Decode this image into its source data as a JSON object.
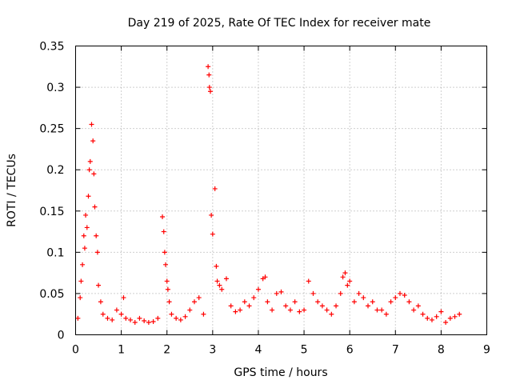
{
  "chart_data": {
    "type": "scatter",
    "title": "Day 219 of 2025, Rate Of TEC Index for receiver mate",
    "xlabel": "GPS time / hours",
    "ylabel": "ROTI / TECUs",
    "xlim": [
      0,
      9
    ],
    "ylim": [
      0,
      0.35
    ],
    "xticks": [
      0,
      1,
      2,
      3,
      4,
      5,
      6,
      7,
      8,
      9
    ],
    "xtick_labels": [
      "0",
      "1",
      "2",
      "3",
      "4",
      "5",
      "6",
      "7",
      "8",
      "9"
    ],
    "yticks": [
      0,
      0.05,
      0.1,
      0.15,
      0.2,
      0.25,
      0.3,
      0.35
    ],
    "ytick_labels": [
      "0",
      "0.05",
      "0.1",
      "0.15",
      "0.2",
      "0.25",
      "0.3",
      "0.35"
    ],
    "grid": true,
    "marker": "plus",
    "series": [
      {
        "name": "ROTI",
        "color": "#ff0000",
        "x": [
          0.05,
          0.1,
          0.12,
          0.15,
          0.18,
          0.2,
          0.22,
          0.25,
          0.28,
          0.3,
          0.32,
          0.35,
          0.38,
          0.4,
          0.42,
          0.45,
          0.48,
          0.5,
          0.55,
          0.6,
          0.7,
          0.8,
          0.9,
          1.0,
          1.05,
          1.1,
          1.2,
          1.3,
          1.4,
          1.5,
          1.6,
          1.7,
          1.8,
          1.9,
          1.93,
          1.95,
          1.97,
          2.0,
          2.02,
          2.05,
          2.1,
          2.2,
          2.3,
          2.4,
          2.5,
          2.6,
          2.7,
          2.8,
          2.9,
          2.92,
          2.93,
          2.95,
          2.97,
          3.0,
          3.05,
          3.08,
          3.1,
          3.15,
          3.2,
          3.3,
          3.4,
          3.5,
          3.6,
          3.7,
          3.8,
          3.9,
          4.0,
          4.1,
          4.15,
          4.2,
          4.3,
          4.4,
          4.5,
          4.6,
          4.7,
          4.8,
          4.9,
          5.0,
          5.1,
          5.2,
          5.3,
          5.4,
          5.5,
          5.6,
          5.7,
          5.8,
          5.85,
          5.9,
          5.95,
          6.0,
          6.1,
          6.2,
          6.3,
          6.4,
          6.5,
          6.6,
          6.7,
          6.8,
          6.9,
          7.0,
          7.1,
          7.2,
          7.3,
          7.4,
          7.5,
          7.6,
          7.7,
          7.8,
          7.9,
          8.0,
          8.1,
          8.2,
          8.3,
          8.4
        ],
        "y": [
          0.02,
          0.045,
          0.065,
          0.085,
          0.12,
          0.105,
          0.145,
          0.13,
          0.168,
          0.2,
          0.21,
          0.255,
          0.235,
          0.195,
          0.155,
          0.12,
          0.1,
          0.06,
          0.04,
          0.025,
          0.02,
          0.018,
          0.03,
          0.025,
          0.045,
          0.02,
          0.018,
          0.015,
          0.02,
          0.017,
          0.015,
          0.016,
          0.02,
          0.143,
          0.125,
          0.1,
          0.085,
          0.065,
          0.055,
          0.04,
          0.025,
          0.02,
          0.018,
          0.022,
          0.03,
          0.04,
          0.045,
          0.025,
          0.325,
          0.315,
          0.3,
          0.295,
          0.145,
          0.122,
          0.177,
          0.083,
          0.065,
          0.06,
          0.055,
          0.068,
          0.035,
          0.028,
          0.03,
          0.04,
          0.035,
          0.045,
          0.055,
          0.068,
          0.07,
          0.04,
          0.03,
          0.05,
          0.052,
          0.035,
          0.03,
          0.04,
          0.028,
          0.03,
          0.065,
          0.05,
          0.04,
          0.035,
          0.03,
          0.025,
          0.035,
          0.05,
          0.07,
          0.075,
          0.06,
          0.065,
          0.04,
          0.05,
          0.045,
          0.035,
          0.04,
          0.03,
          0.03,
          0.025,
          0.04,
          0.045,
          0.05,
          0.048,
          0.04,
          0.03,
          0.035,
          0.025,
          0.02,
          0.018,
          0.022,
          0.028,
          0.015,
          0.02,
          0.022,
          0.025
        ]
      }
    ]
  }
}
